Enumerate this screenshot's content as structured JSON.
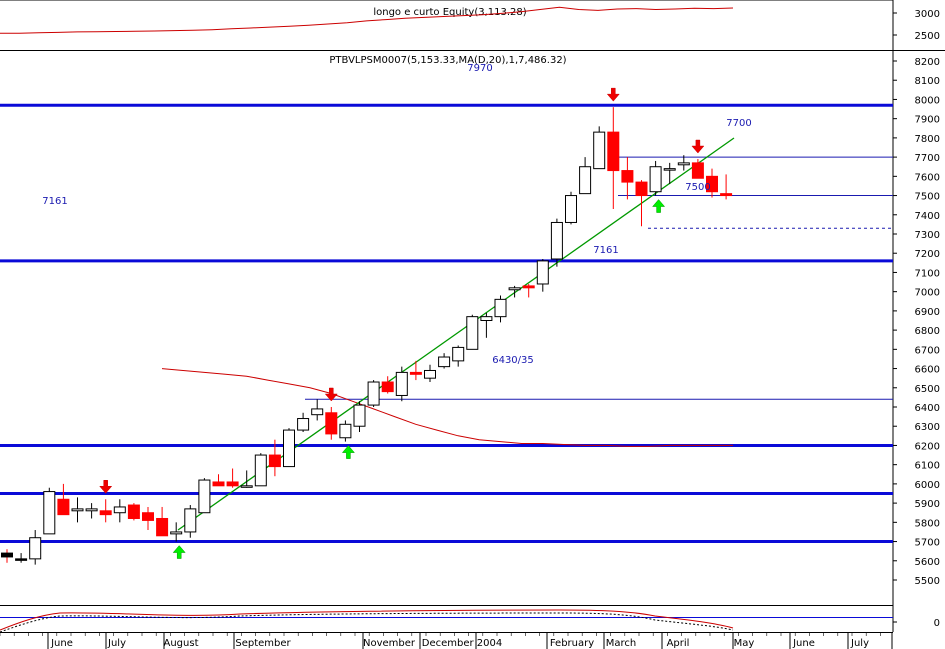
{
  "chart_data": {
    "type": "candlestick",
    "top_panel": {
      "title": "longo e curto Equity(3,113.28)",
      "y_ticks": [
        "3000",
        "2500"
      ],
      "line": [
        2540,
        2540,
        2550,
        2560,
        2570,
        2575,
        2580,
        2585,
        2590,
        2600,
        2610,
        2620,
        2640,
        2660,
        2680,
        2700,
        2720,
        2750,
        2780,
        2820,
        2850,
        2880,
        2900,
        2920,
        2940,
        2960,
        2990,
        3030,
        3080,
        3130,
        3080,
        3060,
        3090,
        3100,
        3080,
        3090,
        3110,
        3100,
        3113
      ]
    },
    "main_panel": {
      "title": "PTBVLPSM0007(5,153.33,MA(D,20),1,7,486.32)",
      "top_label": "7970",
      "y_ticks": [
        8200,
        8100,
        8000,
        7900,
        7800,
        7700,
        7600,
        7500,
        7400,
        7300,
        7200,
        7100,
        7000,
        6900,
        6800,
        6700,
        6600,
        6500,
        6400,
        6300,
        6200,
        6100,
        6000,
        5900,
        5800,
        5700,
        5600,
        5500
      ],
      "y_range": [
        5480,
        8230
      ],
      "candles": [
        {
          "o": 5640,
          "h": 5660,
          "l": 5590,
          "c": 5620
        },
        {
          "o": 5610,
          "h": 5640,
          "l": 5590,
          "c": 5610
        },
        {
          "o": 5610,
          "h": 5760,
          "l": 5580,
          "c": 5720
        },
        {
          "o": 5740,
          "h": 5980,
          "l": 5740,
          "c": 5960
        },
        {
          "o": 5920,
          "h": 6000,
          "l": 5850,
          "c": 5840
        },
        {
          "o": 5860,
          "h": 5930,
          "l": 5800,
          "c": 5870
        },
        {
          "o": 5860,
          "h": 5900,
          "l": 5820,
          "c": 5870
        },
        {
          "o": 5860,
          "h": 5920,
          "l": 5800,
          "c": 5840
        },
        {
          "o": 5850,
          "h": 5920,
          "l": 5800,
          "c": 5880
        },
        {
          "o": 5890,
          "h": 5900,
          "l": 5810,
          "c": 5820
        },
        {
          "o": 5850,
          "h": 5880,
          "l": 5760,
          "c": 5810
        },
        {
          "o": 5820,
          "h": 5880,
          "l": 5740,
          "c": 5730
        },
        {
          "o": 5740,
          "h": 5800,
          "l": 5700,
          "c": 5750
        },
        {
          "o": 5750,
          "h": 5890,
          "l": 5720,
          "c": 5870
        },
        {
          "o": 5850,
          "h": 6030,
          "l": 5850,
          "c": 6020
        },
        {
          "o": 6010,
          "h": 6050,
          "l": 5990,
          "c": 5990
        },
        {
          "o": 6010,
          "h": 6080,
          "l": 5980,
          "c": 5990
        },
        {
          "o": 5990,
          "h": 6070,
          "l": 5980,
          "c": 5990
        },
        {
          "o": 5990,
          "h": 6160,
          "l": 5990,
          "c": 6150
        },
        {
          "o": 6150,
          "h": 6230,
          "l": 6040,
          "c": 6090
        },
        {
          "o": 6090,
          "h": 6290,
          "l": 6090,
          "c": 6280
        },
        {
          "o": 6280,
          "h": 6370,
          "l": 6270,
          "c": 6340
        },
        {
          "o": 6360,
          "h": 6440,
          "l": 6330,
          "c": 6390
        },
        {
          "o": 6370,
          "h": 6400,
          "l": 6230,
          "c": 6260
        },
        {
          "o": 6240,
          "h": 6330,
          "l": 6220,
          "c": 6310
        },
        {
          "o": 6300,
          "h": 6430,
          "l": 6270,
          "c": 6410
        },
        {
          "o": 6410,
          "h": 6540,
          "l": 6400,
          "c": 6530
        },
        {
          "o": 6530,
          "h": 6560,
          "l": 6470,
          "c": 6480
        },
        {
          "o": 6460,
          "h": 6610,
          "l": 6430,
          "c": 6580
        },
        {
          "o": 6580,
          "h": 6640,
          "l": 6540,
          "c": 6570
        },
        {
          "o": 6550,
          "h": 6620,
          "l": 6530,
          "c": 6590
        },
        {
          "o": 6610,
          "h": 6680,
          "l": 6600,
          "c": 6660
        },
        {
          "o": 6640,
          "h": 6720,
          "l": 6610,
          "c": 6710
        },
        {
          "o": 6700,
          "h": 6880,
          "l": 6700,
          "c": 6870
        },
        {
          "o": 6850,
          "h": 6890,
          "l": 6760,
          "c": 6870
        },
        {
          "o": 6870,
          "h": 6980,
          "l": 6840,
          "c": 6960
        },
        {
          "o": 7010,
          "h": 7030,
          "l": 6970,
          "c": 7020
        },
        {
          "o": 7030,
          "h": 7040,
          "l": 6970,
          "c": 7020
        },
        {
          "o": 7040,
          "h": 7170,
          "l": 7000,
          "c": 7160
        },
        {
          "o": 7170,
          "h": 7380,
          "l": 7130,
          "c": 7360
        },
        {
          "o": 7360,
          "h": 7520,
          "l": 7350,
          "c": 7500
        },
        {
          "o": 7510,
          "h": 7700,
          "l": 7510,
          "c": 7650
        },
        {
          "o": 7640,
          "h": 7860,
          "l": 7640,
          "c": 7830
        },
        {
          "o": 7830,
          "h": 7960,
          "l": 7430,
          "c": 7630
        },
        {
          "o": 7630,
          "h": 7700,
          "l": 7480,
          "c": 7570
        },
        {
          "o": 7570,
          "h": 7580,
          "l": 7340,
          "c": 7500
        },
        {
          "o": 7520,
          "h": 7680,
          "l": 7500,
          "c": 7650
        },
        {
          "o": 7640,
          "h": 7670,
          "l": 7560,
          "c": 7640
        },
        {
          "o": 7660,
          "h": 7710,
          "l": 7630,
          "c": 7670
        },
        {
          "o": 7670,
          "h": 7690,
          "l": 7590,
          "c": 7590
        },
        {
          "o": 7600,
          "h": 7640,
          "l": 7490,
          "c": 7520
        },
        {
          "o": 7510,
          "h": 7610,
          "l": 7480,
          "c": 7500
        }
      ],
      "hlines": [
        {
          "value": 7970,
          "color": "#0a0ad8",
          "heavy": true
        },
        {
          "value": 7160,
          "color": "#0a0ad8",
          "heavy": true
        },
        {
          "value": 6200,
          "color": "#0a0ad8",
          "heavy": true
        },
        {
          "value": 5950,
          "color": "#0a0ad8",
          "heavy": true
        },
        {
          "value": 5700,
          "color": "#0a0ad8",
          "heavy": true
        },
        {
          "value": 7700,
          "color": "#1a1ab0",
          "heavy": false
        },
        {
          "value": 7500,
          "color": "#1a1ab0",
          "heavy": false
        },
        {
          "value": 6440,
          "color": "#1a1ab0",
          "heavy": false
        },
        {
          "value": 7330,
          "color": "#1a1ab0",
          "heavy": false,
          "dashed": true
        }
      ],
      "annotations": [
        "7161",
        "7700",
        "7500",
        "7161",
        "6430/35"
      ],
      "up_arrows": [
        12,
        24,
        46
      ],
      "down_arrows": [
        7,
        23,
        43,
        49
      ],
      "ma_line": [
        6600,
        6590,
        6580,
        6570,
        6560,
        6540,
        6520,
        6500,
        6470,
        6430,
        6390,
        6350,
        6310,
        6280,
        6250,
        6230,
        6220,
        6210,
        6210,
        6205,
        6200,
        6200,
        6195,
        6195,
        6200,
        6200,
        6200,
        6200
      ]
    },
    "bottom_panel": {
      "y_ticks": [
        "0"
      ]
    },
    "x_labels": [
      "June",
      "July",
      "August",
      "September",
      "November",
      "December 2004",
      "February",
      "March",
      "April",
      "May",
      "June",
      "July"
    ],
    "colors": {
      "up": "#ffffff",
      "down": "#ff0000",
      "level": "#0a0ad8",
      "trend": "#009900",
      "ma": "#cc0000",
      "up_arrow": "#00ee00",
      "down_arrow": "#ee0000"
    }
  }
}
